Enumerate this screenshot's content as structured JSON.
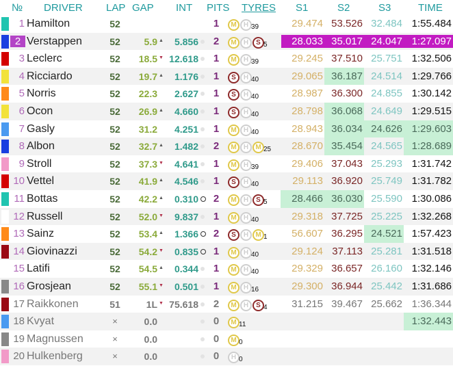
{
  "header": {
    "no": "№",
    "driver": "DRIVER",
    "lap": "LAP",
    "gap": "GAP",
    "int": "INT",
    "pits": "PITS",
    "tyres": "TYRES",
    "s1": "S1",
    "s2": "S2",
    "s3": "S3",
    "time": "TIME"
  },
  "colors": {
    "header_text": "#1f9a9e",
    "best_overall_purple": "#c21bc2",
    "personal_best_green": "#c8f0d6",
    "tyre_medium": "#e0c84a",
    "tyre_hard": "#cfcfcf",
    "tyre_soft": "#8e2a2a"
  },
  "rows": [
    {
      "pos": "1",
      "driver": "Hamilton",
      "team_color": "#20c4b0",
      "lap": "52",
      "gap": "",
      "gap_trend": "",
      "int": "",
      "int_marker": "",
      "pits": "1",
      "tyres": [
        "M",
        "H"
      ],
      "tyre_laps": "39",
      "s1": "29.474",
      "s2": "53.526",
      "s3": "32.484",
      "time": "1:55.484",
      "hl": []
    },
    {
      "pos": "2",
      "driver": "Verstappen",
      "team_color": "#1a3fe0",
      "lap": "52",
      "gap": "5.9",
      "gap_trend": "▲",
      "int": "5.856",
      "int_marker": "dot",
      "pits": "2",
      "tyres": [
        "M",
        "H",
        "S"
      ],
      "tyre_laps": "5",
      "s1": "28.033",
      "s2": "35.017",
      "s3": "24.047",
      "time": "1:27.097",
      "hl": [
        "purple"
      ]
    },
    {
      "pos": "3",
      "driver": "Leclerc",
      "team_color": "#d40000",
      "lap": "52",
      "gap": "18.5",
      "gap_trend": "▼",
      "int": "12.618",
      "int_marker": "dot",
      "pits": "1",
      "tyres": [
        "M",
        "H"
      ],
      "tyre_laps": "39",
      "s1": "29.245",
      "s2": "37.510",
      "s3": "25.751",
      "time": "1:32.506",
      "hl": []
    },
    {
      "pos": "4",
      "driver": "Ricciardo",
      "team_color": "#f2e23a",
      "lap": "52",
      "gap": "19.7",
      "gap_trend": "▲",
      "int": "1.176",
      "int_marker": "dot",
      "pits": "1",
      "tyres": [
        "S",
        "H"
      ],
      "tyre_laps": "40",
      "s1": "29.065",
      "s2": "36.187",
      "s3": "24.514",
      "time": "1:29.766",
      "hl": [
        "s2"
      ]
    },
    {
      "pos": "5",
      "driver": "Norris",
      "team_color": "#ff8a1a",
      "lap": "52",
      "gap": "22.3",
      "gap_trend": "",
      "int": "2.627",
      "int_marker": "dot",
      "pits": "1",
      "tyres": [
        "S",
        "H"
      ],
      "tyre_laps": "40",
      "s1": "28.987",
      "s2": "36.300",
      "s3": "24.855",
      "time": "1:30.142",
      "hl": []
    },
    {
      "pos": "6",
      "driver": "Ocon",
      "team_color": "#f2e23a",
      "lap": "52",
      "gap": "26.9",
      "gap_trend": "▲",
      "int": "4.660",
      "int_marker": "dot",
      "pits": "1",
      "tyres": [
        "S",
        "H"
      ],
      "tyre_laps": "40",
      "s1": "28.798",
      "s2": "36.068",
      "s3": "24.649",
      "time": "1:29.515",
      "hl": [
        "s2"
      ]
    },
    {
      "pos": "7",
      "driver": "Gasly",
      "team_color": "#4a9af0",
      "lap": "52",
      "gap": "31.2",
      "gap_trend": "",
      "int": "4.251",
      "int_marker": "dot",
      "pits": "1",
      "tyres": [
        "M",
        "H"
      ],
      "tyre_laps": "40",
      "s1": "28.943",
      "s2": "36.034",
      "s3": "24.626",
      "time": "1:29.603",
      "hl": [
        "s2",
        "s3",
        "time"
      ]
    },
    {
      "pos": "8",
      "driver": "Albon",
      "team_color": "#1a3fe0",
      "lap": "52",
      "gap": "32.7",
      "gap_trend": "▲",
      "int": "1.482",
      "int_marker": "dot",
      "pits": "2",
      "tyres": [
        "M",
        "H",
        "M"
      ],
      "tyre_laps": "25",
      "s1": "28.670",
      "s2": "35.454",
      "s3": "24.565",
      "time": "1:28.689",
      "hl": [
        "s2",
        "time"
      ]
    },
    {
      "pos": "9",
      "driver": "Stroll",
      "team_color": "#f29ac8",
      "lap": "52",
      "gap": "37.3",
      "gap_trend": "▼",
      "int": "4.641",
      "int_marker": "dot",
      "pits": "1",
      "tyres": [
        "M",
        "H"
      ],
      "tyre_laps": "39",
      "s1": "29.406",
      "s2": "37.043",
      "s3": "25.293",
      "time": "1:31.742",
      "hl": []
    },
    {
      "pos": "10",
      "driver": "Vettel",
      "team_color": "#d40000",
      "lap": "52",
      "gap": "41.9",
      "gap_trend": "▲",
      "int": "4.546",
      "int_marker": "dot",
      "pits": "1",
      "tyres": [
        "S",
        "H"
      ],
      "tyre_laps": "40",
      "s1": "29.113",
      "s2": "36.920",
      "s3": "25.749",
      "time": "1:31.782",
      "hl": []
    },
    {
      "pos": "11",
      "driver": "Bottas",
      "team_color": "#20c4b0",
      "lap": "52",
      "gap": "42.2",
      "gap_trend": "▲",
      "int": "0.310",
      "int_marker": "ring",
      "pits": "2",
      "tyres": [
        "M",
        "H",
        "S"
      ],
      "tyre_laps": "5",
      "s1": "28.466",
      "s2": "36.030",
      "s3": "25.590",
      "time": "1:30.086",
      "hl": [
        "s1",
        "s2"
      ]
    },
    {
      "pos": "12",
      "driver": "Russell",
      "team_color": "#ffffff",
      "lap": "52",
      "gap": "52.0",
      "gap_trend": "▼",
      "int": "9.837",
      "int_marker": "dot",
      "pits": "1",
      "tyres": [
        "M",
        "H"
      ],
      "tyre_laps": "40",
      "s1": "29.318",
      "s2": "37.725",
      "s3": "25.225",
      "time": "1:32.268",
      "hl": []
    },
    {
      "pos": "13",
      "driver": "Sainz",
      "team_color": "#ff8a1a",
      "lap": "52",
      "gap": "53.4",
      "gap_trend": "▲",
      "int": "1.366",
      "int_marker": "ring",
      "pits": "2",
      "tyres": [
        "S",
        "H",
        "M"
      ],
      "tyre_laps": "1",
      "s1": "56.607",
      "s2": "36.295",
      "s3": "24.521",
      "time": "1:57.423",
      "hl": [
        "s3"
      ]
    },
    {
      "pos": "14",
      "driver": "Giovinazzi",
      "team_color": "#9a0a14",
      "lap": "52",
      "gap": "54.2",
      "gap_trend": "▼",
      "int": "0.835",
      "int_marker": "ring",
      "pits": "1",
      "tyres": [
        "M",
        "H"
      ],
      "tyre_laps": "40",
      "s1": "29.124",
      "s2": "37.113",
      "s3": "25.281",
      "time": "1:31.518",
      "hl": []
    },
    {
      "pos": "15",
      "driver": "Latifi",
      "team_color": "#ffffff",
      "lap": "52",
      "gap": "54.5",
      "gap_trend": "▲",
      "int": "0.344",
      "int_marker": "dot",
      "pits": "1",
      "tyres": [
        "M",
        "H"
      ],
      "tyre_laps": "40",
      "s1": "29.329",
      "s2": "36.657",
      "s3": "26.160",
      "time": "1:32.146",
      "hl": []
    },
    {
      "pos": "16",
      "driver": "Grosjean",
      "team_color": "#888888",
      "lap": "52",
      "gap": "55.1",
      "gap_trend": "▼",
      "int": "0.501",
      "int_marker": "dot",
      "pits": "1",
      "tyres": [
        "M",
        "H"
      ],
      "tyre_laps": "16",
      "s1": "29.300",
      "s2": "36.944",
      "s3": "25.442",
      "time": "1:31.686",
      "hl": []
    },
    {
      "pos": "17",
      "driver": "Raikkonen",
      "team_color": "#9a0a14",
      "lap": "51",
      "gap": "1L",
      "gap_trend": "▼",
      "int": "75.618",
      "int_marker": "dot",
      "pits": "2",
      "tyres": [
        "M",
        "H",
        "S"
      ],
      "tyre_laps": "4",
      "s1": "31.215",
      "s2": "39.467",
      "s3": "25.662",
      "time": "1:36.344",
      "hl": [],
      "dim": true
    },
    {
      "pos": "18",
      "driver": "Kvyat",
      "team_color": "#4a9af0",
      "lap": "×",
      "gap": "0.0",
      "gap_trend": "",
      "int": "",
      "int_marker": "dot",
      "pits": "0",
      "tyres": [
        "M"
      ],
      "tyre_laps": "11",
      "s1": "",
      "s2": "",
      "s3": "",
      "time": "1:32.443",
      "hl": [
        "time"
      ],
      "dim": true
    },
    {
      "pos": "19",
      "driver": "Magnussen",
      "team_color": "#888888",
      "lap": "×",
      "gap": "0.0",
      "gap_trend": "",
      "int": "",
      "int_marker": "dot",
      "pits": "0",
      "tyres": [
        "M"
      ],
      "tyre_laps": "0",
      "s1": "",
      "s2": "",
      "s3": "",
      "time": "",
      "hl": [],
      "dim": true
    },
    {
      "pos": "20",
      "driver": "Hulkenberg",
      "team_color": "#f29ac8",
      "lap": "×",
      "gap": "0.0",
      "gap_trend": "",
      "int": "",
      "int_marker": "dot",
      "pits": "0",
      "tyres": [
        "H"
      ],
      "tyre_laps": "0",
      "s1": "",
      "s2": "",
      "s3": "",
      "time": "",
      "hl": [],
      "dim": true
    }
  ]
}
